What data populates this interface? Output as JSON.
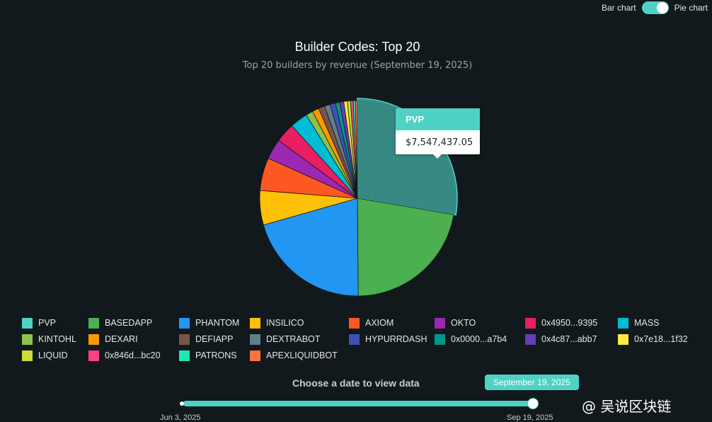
{
  "toggle": {
    "left_label": "Bar chart",
    "right_label": "Pie chart",
    "active": "Pie chart"
  },
  "chart_data": {
    "type": "pie",
    "title": "Builder Codes: Top 20",
    "subtitle": "Top 20 builders by revenue (September 19, 2025)",
    "legend_position": "bottom",
    "slices": [
      {
        "label": "PVP",
        "value": 7547437.05,
        "color": "#4fd1c5"
      },
      {
        "label": "BASEDAPP",
        "value": 6050000,
        "color": "#4caf50"
      },
      {
        "label": "PHANTOM",
        "value": 5650000,
        "color": "#2196f3"
      },
      {
        "label": "INSILICO",
        "value": 1550000,
        "color": "#ffc107"
      },
      {
        "label": "AXIOM",
        "value": 1480000,
        "color": "#ff5722"
      },
      {
        "label": "OKTO",
        "value": 920000,
        "color": "#9c27b0"
      },
      {
        "label": "0x4950...9395",
        "value": 880000,
        "color": "#e91e63"
      },
      {
        "label": "MASS",
        "value": 800000,
        "color": "#00bcd4"
      },
      {
        "label": "KINTOHL",
        "value": 320000,
        "color": "#8bc34a"
      },
      {
        "label": "DEXARI",
        "value": 300000,
        "color": "#ff9800"
      },
      {
        "label": "DEFIAPP",
        "value": 280000,
        "color": "#795548"
      },
      {
        "label": "DEXTRABOT",
        "value": 260000,
        "color": "#607d8b"
      },
      {
        "label": "HYPURRDASH",
        "value": 240000,
        "color": "#3f51b5"
      },
      {
        "label": "0x0000...a7b4",
        "value": 200000,
        "color": "#009688"
      },
      {
        "label": "0x4c87...abb7",
        "value": 180000,
        "color": "#673ab7"
      },
      {
        "label": "0x7e18...1f32",
        "value": 160000,
        "color": "#ffeb3b"
      },
      {
        "label": "LIQUID",
        "value": 140000,
        "color": "#cddc39"
      },
      {
        "label": "0x846d...bc20",
        "value": 120000,
        "color": "#ff4081"
      },
      {
        "label": "PATRONS",
        "value": 100000,
        "color": "#1de9b6"
      },
      {
        "label": "APEXLIQUIDBOT",
        "value": 90000,
        "color": "#ff7043"
      }
    ],
    "highlighted": 0
  },
  "tooltip": {
    "label": "PVP",
    "value": "$7,547,437.05"
  },
  "date_selector": {
    "label": "Choose a date to view data",
    "selected": "September 19, 2025",
    "min_label": "Jun 3, 2025",
    "max_label": "Sep 19, 2025",
    "position": 1.0
  },
  "watermark": "@ 吴说区块链"
}
